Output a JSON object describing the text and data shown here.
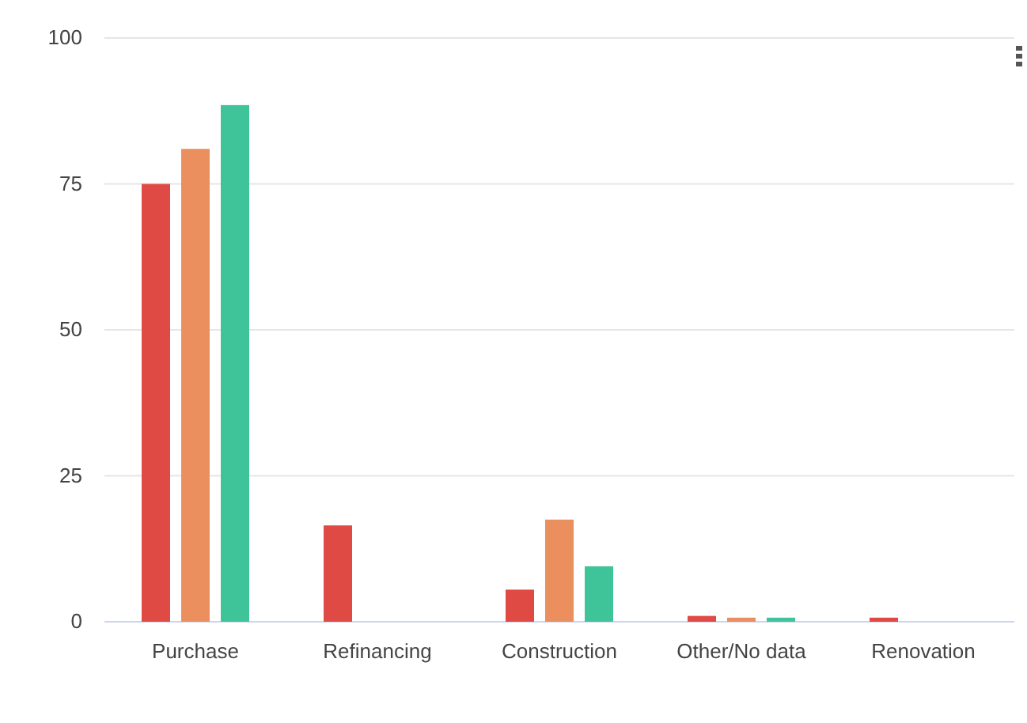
{
  "chart_data": {
    "type": "bar",
    "categories": [
      "Purchase",
      "Refinancing",
      "Construction",
      "Other/No data",
      "Renovation"
    ],
    "series": [
      {
        "color": "#e04a44",
        "values": [
          75,
          16.5,
          5.5,
          1,
          0.7
        ]
      },
      {
        "color": "#ec8f5e",
        "values": [
          81,
          0,
          17.5,
          0.7,
          0
        ]
      },
      {
        "color": "#3fc49a",
        "values": [
          88.5,
          0,
          9.5,
          0.7,
          0
        ]
      }
    ],
    "ylim": [
      0,
      100
    ],
    "yticks": [
      0,
      25,
      50,
      75,
      100
    ],
    "grid": "y",
    "legend": false
  }
}
